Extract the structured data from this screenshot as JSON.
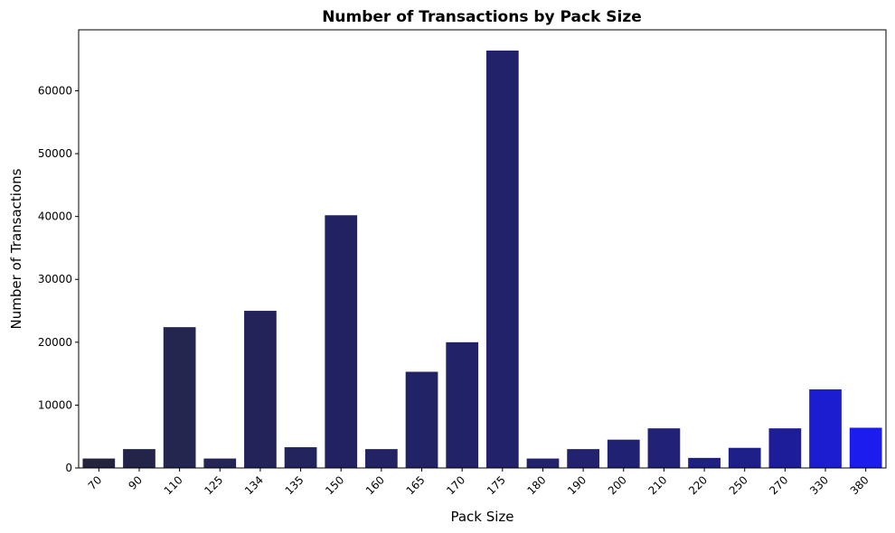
{
  "chart_data": {
    "type": "bar",
    "title": "Number of Transactions by Pack Size",
    "xlabel": "Pack Size",
    "ylabel": "Number of Transactions",
    "categories": [
      "70",
      "90",
      "110",
      "125",
      "134",
      "135",
      "150",
      "160",
      "165",
      "170",
      "175",
      "180",
      "190",
      "200",
      "210",
      "220",
      "250",
      "270",
      "330",
      "380"
    ],
    "values": [
      1500,
      3000,
      22400,
      1500,
      25000,
      3300,
      40200,
      3000,
      15300,
      20000,
      66400,
      1500,
      3000,
      4500,
      6300,
      1600,
      3200,
      6300,
      12500,
      6400
    ],
    "colors": [
      "#24243f",
      "#24244a",
      "#242650",
      "#242455",
      "#23235a",
      "#23235e",
      "#222262",
      "#222265",
      "#222266",
      "#222268",
      "#22226a",
      "#22226c",
      "#22226f",
      "#212173",
      "#212177",
      "#1f1f84",
      "#1f1f8a",
      "#1d1d9a",
      "#1c1cd0",
      "#1c1cef"
    ],
    "ylim": [
      0,
      69700
    ],
    "yticks": [
      0,
      10000,
      20000,
      30000,
      40000,
      50000,
      60000
    ],
    "grid": false,
    "legend": "none"
  }
}
